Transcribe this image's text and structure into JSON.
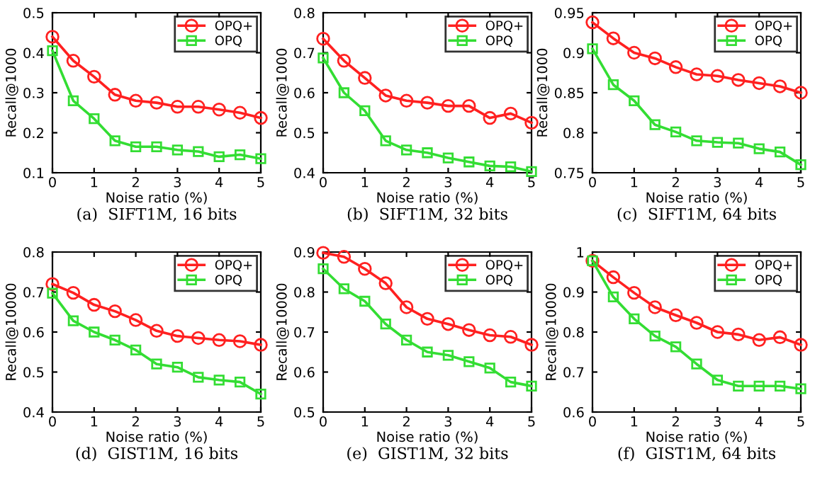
{
  "chart_data": [
    {
      "type": "line",
      "title": "(a)  SIFT1M, 16 bits",
      "xlabel": "Noise ratio (%)",
      "ylabel": "Recall@1000",
      "x": [
        0,
        0.5,
        1,
        1.5,
        2,
        2.5,
        3,
        3.5,
        4,
        4.5,
        5
      ],
      "xlim": [
        0,
        5
      ],
      "xticks": [
        0,
        1,
        2,
        3,
        4,
        5
      ],
      "ylim": [
        0.1,
        0.5
      ],
      "yticks": [
        0.1,
        0.2,
        0.3,
        0.4,
        0.5
      ],
      "grid": false,
      "legend": "top right",
      "series": [
        {
          "name": "OPQ+",
          "color": "#ff2020",
          "marker": "circle",
          "values": [
            0.44,
            0.38,
            0.34,
            0.295,
            0.28,
            0.275,
            0.265,
            0.265,
            0.258,
            0.25,
            0.237
          ]
        },
        {
          "name": "OPQ",
          "color": "#33dd33",
          "marker": "square",
          "values": [
            0.405,
            0.28,
            0.235,
            0.18,
            0.165,
            0.165,
            0.157,
            0.153,
            0.14,
            0.145,
            0.135
          ]
        }
      ]
    },
    {
      "type": "line",
      "title": "(b)  SIFT1M, 32 bits",
      "xlabel": "Noise ratio (%)",
      "ylabel": "Recall@1000",
      "x": [
        0,
        0.5,
        1,
        1.5,
        2,
        2.5,
        3,
        3.5,
        4,
        4.5,
        5
      ],
      "xlim": [
        0,
        5
      ],
      "xticks": [
        0,
        1,
        2,
        3,
        4,
        5
      ],
      "ylim": [
        0.4,
        0.8
      ],
      "yticks": [
        0.4,
        0.5,
        0.6,
        0.7,
        0.8
      ],
      "grid": false,
      "legend": "top right",
      "series": [
        {
          "name": "OPQ+",
          "color": "#ff2020",
          "marker": "circle",
          "values": [
            0.735,
            0.68,
            0.637,
            0.593,
            0.58,
            0.575,
            0.567,
            0.567,
            0.537,
            0.548,
            0.525
          ]
        },
        {
          "name": "OPQ",
          "color": "#33dd33",
          "marker": "square",
          "values": [
            0.687,
            0.6,
            0.555,
            0.48,
            0.457,
            0.45,
            0.437,
            0.427,
            0.417,
            0.415,
            0.403
          ]
        }
      ]
    },
    {
      "type": "line",
      "title": "(c)  SIFT1M, 64 bits",
      "xlabel": "Noise ratio (%)",
      "ylabel": "Recall@1000",
      "x": [
        0,
        0.5,
        1,
        1.5,
        2,
        2.5,
        3,
        3.5,
        4,
        4.5,
        5
      ],
      "xlim": [
        0,
        5
      ],
      "xticks": [
        0,
        1,
        2,
        3,
        4,
        5
      ],
      "ylim": [
        0.75,
        0.95
      ],
      "yticks": [
        0.75,
        0.8,
        0.85,
        0.9,
        0.95
      ],
      "grid": false,
      "legend": "top right",
      "series": [
        {
          "name": "OPQ+",
          "color": "#ff2020",
          "marker": "circle",
          "values": [
            0.938,
            0.918,
            0.9,
            0.893,
            0.882,
            0.873,
            0.871,
            0.866,
            0.862,
            0.858,
            0.85
          ]
        },
        {
          "name": "OPQ",
          "color": "#33dd33",
          "marker": "square",
          "values": [
            0.905,
            0.86,
            0.84,
            0.81,
            0.801,
            0.79,
            0.788,
            0.787,
            0.78,
            0.776,
            0.76
          ]
        }
      ]
    },
    {
      "type": "line",
      "title": "(d)  GIST1M, 16 bits",
      "xlabel": "Noise ratio (%)",
      "ylabel": "Recall@10000",
      "x": [
        0,
        0.5,
        1,
        1.5,
        2,
        2.5,
        3,
        3.5,
        4,
        4.5,
        5
      ],
      "xlim": [
        0,
        5
      ],
      "xticks": [
        0,
        1,
        2,
        3,
        4,
        5
      ],
      "ylim": [
        0.4,
        0.8
      ],
      "yticks": [
        0.4,
        0.5,
        0.6,
        0.7,
        0.8
      ],
      "grid": false,
      "legend": "top right",
      "series": [
        {
          "name": "OPQ+",
          "color": "#ff2020",
          "marker": "circle",
          "values": [
            0.72,
            0.698,
            0.668,
            0.652,
            0.63,
            0.603,
            0.59,
            0.585,
            0.58,
            0.577,
            0.568
          ]
        },
        {
          "name": "OPQ",
          "color": "#33dd33",
          "marker": "square",
          "values": [
            0.697,
            0.628,
            0.6,
            0.58,
            0.555,
            0.52,
            0.512,
            0.487,
            0.48,
            0.475,
            0.445
          ]
        }
      ]
    },
    {
      "type": "line",
      "title": "(e)  GIST1M, 32 bits",
      "xlabel": "Noise ratio (%)",
      "ylabel": "Recall@10000",
      "x": [
        0,
        0.5,
        1,
        1.5,
        2,
        2.5,
        3,
        3.5,
        4,
        4.5,
        5
      ],
      "xlim": [
        0,
        5
      ],
      "xticks": [
        0,
        1,
        2,
        3,
        4,
        5
      ],
      "ylim": [
        0.5,
        0.9
      ],
      "yticks": [
        0.5,
        0.6,
        0.7,
        0.8,
        0.9
      ],
      "grid": false,
      "legend": "top right",
      "series": [
        {
          "name": "OPQ+",
          "color": "#ff2020",
          "marker": "circle",
          "values": [
            0.898,
            0.888,
            0.858,
            0.822,
            0.762,
            0.733,
            0.72,
            0.705,
            0.692,
            0.688,
            0.668
          ]
        },
        {
          "name": "OPQ",
          "color": "#33dd33",
          "marker": "square",
          "values": [
            0.858,
            0.808,
            0.777,
            0.72,
            0.68,
            0.65,
            0.642,
            0.626,
            0.61,
            0.575,
            0.565
          ]
        }
      ]
    },
    {
      "type": "line",
      "title": "(f)  GIST1M, 64 bits",
      "xlabel": "Noise ratio (%)",
      "ylabel": "Recall@10000",
      "x": [
        0,
        0.5,
        1,
        1.5,
        2,
        2.5,
        3,
        3.5,
        4,
        4.5,
        5
      ],
      "xlim": [
        0,
        5
      ],
      "xticks": [
        0,
        1,
        2,
        3,
        4,
        5
      ],
      "ylim": [
        0.6,
        1
      ],
      "yticks": [
        0.6,
        0.7,
        0.8,
        0.9,
        1
      ],
      "grid": false,
      "legend": "top right",
      "series": [
        {
          "name": "OPQ+",
          "color": "#ff2020",
          "marker": "circle",
          "values": [
            0.978,
            0.937,
            0.898,
            0.862,
            0.842,
            0.823,
            0.8,
            0.794,
            0.78,
            0.787,
            0.768
          ]
        },
        {
          "name": "OPQ",
          "color": "#33dd33",
          "marker": "square",
          "values": [
            0.978,
            0.888,
            0.833,
            0.79,
            0.763,
            0.72,
            0.68,
            0.665,
            0.665,
            0.665,
            0.658
          ]
        }
      ]
    }
  ]
}
